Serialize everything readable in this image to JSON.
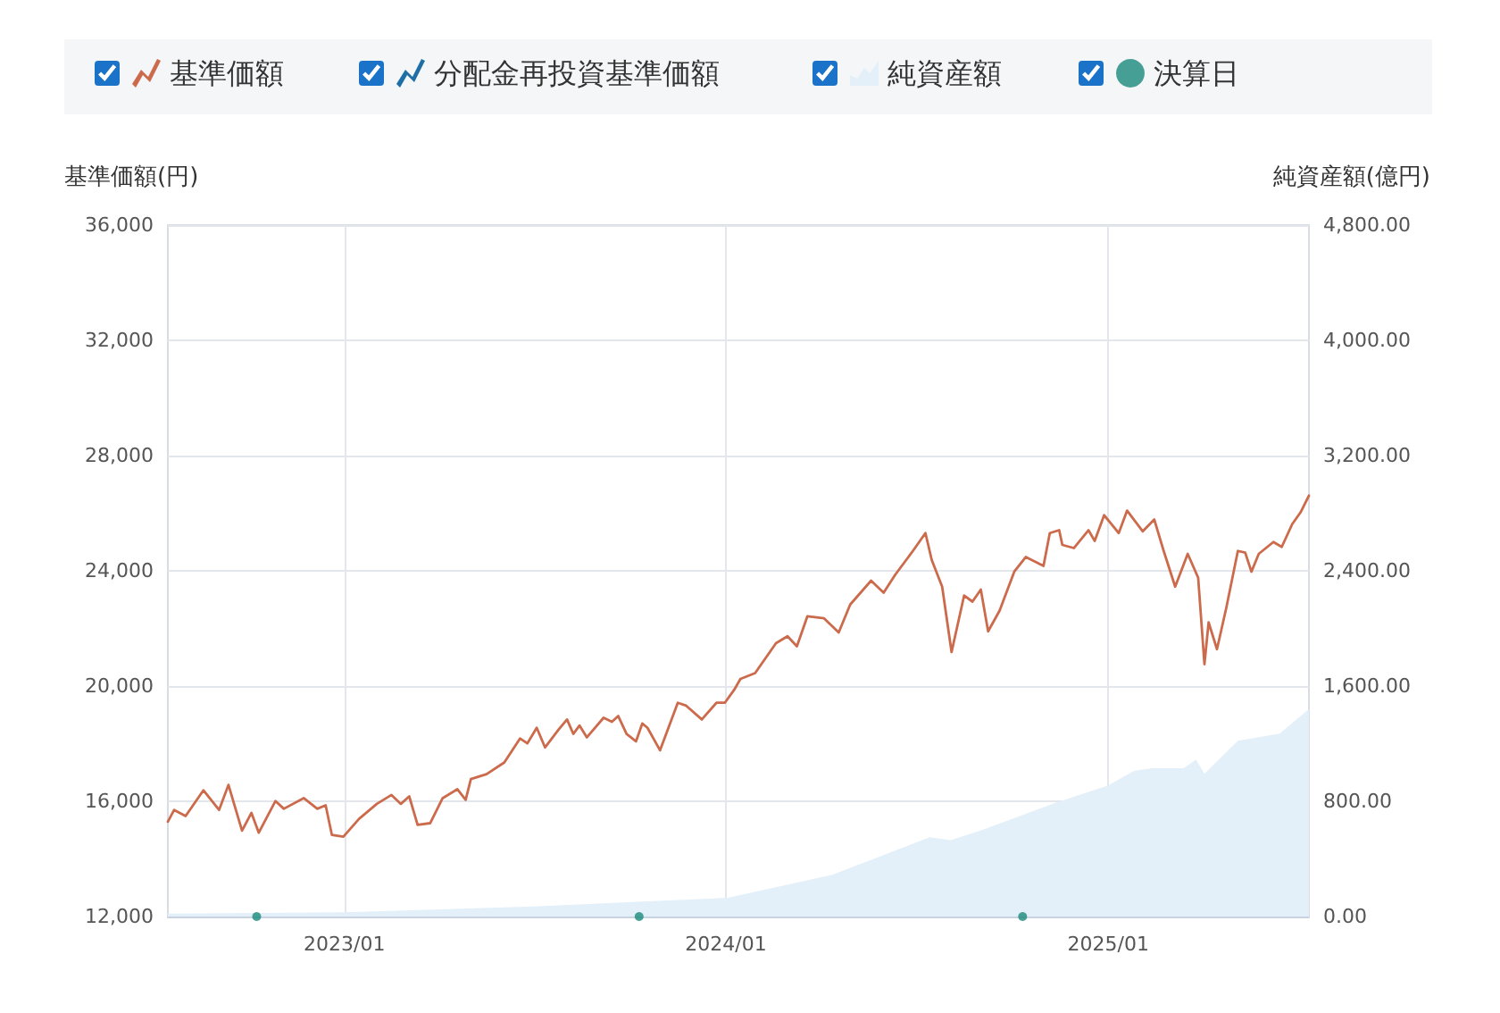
{
  "chart_data": {
    "type": "line",
    "ylabel": "基準価額(円)",
    "y2label": "純資産額(億円)",
    "x": [
      "2022-07-16",
      "2022-07-22",
      "2022-08-02",
      "2022-08-19",
      "2022-09-03",
      "2022-09-12",
      "2022-09-25",
      "2022-10-04",
      "2022-10-11",
      "2022-10-27",
      "2022-11-04",
      "2022-11-23",
      "2022-12-06",
      "2022-12-14",
      "2022-12-20",
      "2022-12-31",
      "2023-01-15",
      "2023-02-01",
      "2023-02-15",
      "2023-02-24",
      "2023-03-04",
      "2023-03-12",
      "2023-03-24",
      "2023-04-05",
      "2023-04-19",
      "2023-04-27",
      "2023-05-02",
      "2023-05-17",
      "2023-06-03",
      "2023-06-18",
      "2023-06-25",
      "2023-07-04",
      "2023-07-12",
      "2023-07-25",
      "2023-08-02",
      "2023-08-08",
      "2023-08-14",
      "2023-08-21",
      "2023-09-06",
      "2023-09-14",
      "2023-09-20",
      "2023-09-28",
      "2023-10-07",
      "2023-10-13",
      "2023-10-18",
      "2023-10-30",
      "2023-11-16",
      "2023-11-24",
      "2023-12-09",
      "2023-12-23",
      "2023-12-31",
      "2024-01-09",
      "2024-01-15",
      "2024-01-29",
      "2024-02-18",
      "2024-02-29",
      "2024-03-09",
      "2024-03-19",
      "2024-04-04",
      "2024-04-18",
      "2024-04-29",
      "2024-05-19",
      "2024-05-31",
      "2024-06-11",
      "2024-06-28",
      "2024-07-10",
      "2024-07-16",
      "2024-07-26",
      "2024-08-04",
      "2024-08-16",
      "2024-08-24",
      "2024-09-01",
      "2024-09-08",
      "2024-09-19",
      "2024-10-03",
      "2024-10-14",
      "2024-10-31",
      "2024-11-06",
      "2024-11-15",
      "2024-11-18",
      "2024-11-29",
      "2024-12-13",
      "2024-12-19",
      "2024-12-28",
      "2025-01-05",
      "2025-01-11",
      "2025-01-19",
      "2025-02-03",
      "2025-02-14",
      "2025-02-23",
      "2025-03-06",
      "2025-03-18",
      "2025-03-28",
      "2025-04-03",
      "2025-04-07",
      "2025-04-15",
      "2025-04-24",
      "2025-05-05",
      "2025-05-12",
      "2025-05-18",
      "2025-05-25",
      "2025-06-08",
      "2025-06-16",
      "2025-06-26",
      "2025-07-04",
      "2025-07-12"
    ],
    "series": [
      {
        "name": "基準価額",
        "color": "#cc6a4c",
        "values": [
          15290,
          15700,
          15490,
          16380,
          15700,
          16570,
          14980,
          15600,
          14910,
          16010,
          15740,
          16110,
          15740,
          15860,
          14830,
          14770,
          15390,
          15910,
          16220,
          15910,
          16170,
          15180,
          15240,
          16110,
          16420,
          16050,
          16770,
          16940,
          17350,
          18180,
          18010,
          18550,
          17870,
          18490,
          18840,
          18340,
          18630,
          18220,
          18900,
          18760,
          18960,
          18340,
          18080,
          18700,
          18550,
          17770,
          19420,
          19320,
          18840,
          19420,
          19420,
          19870,
          20250,
          20450,
          21490,
          21730,
          21380,
          22420,
          22350,
          21860,
          22830,
          23660,
          23240,
          23860,
          24690,
          25310,
          24380,
          23450,
          21180,
          23140,
          22930,
          23350,
          21900,
          22620,
          23970,
          24480,
          24170,
          25310,
          25410,
          24900,
          24790,
          25410,
          25040,
          25930,
          25580,
          25310,
          26090,
          25370,
          25780,
          24690,
          23450,
          24590,
          23760,
          20760,
          22210,
          21280,
          22730,
          24690,
          24630,
          23970,
          24590,
          25000,
          24830,
          25620,
          26030,
          26610
        ]
      },
      {
        "name": "分配金再投資基準価額",
        "color": "#1f6fa6",
        "values": [
          null,
          null,
          null,
          null,
          null,
          null,
          null,
          null,
          null,
          null,
          null,
          null,
          null,
          null,
          null,
          null,
          null,
          null,
          null,
          null,
          null,
          null,
          null,
          null,
          null,
          null,
          null,
          null,
          null,
          null,
          null,
          null,
          null,
          null,
          null,
          null,
          null,
          null,
          null,
          null,
          null,
          null,
          null,
          null,
          null,
          null,
          null,
          null,
          null,
          null,
          null,
          null,
          null,
          null,
          null,
          null,
          null,
          null,
          null,
          null,
          null,
          null,
          null,
          null,
          null,
          null,
          null,
          null,
          null,
          null,
          null,
          null,
          null,
          null,
          null,
          null,
          null,
          null,
          null,
          null,
          null,
          null,
          null,
          null,
          null,
          null,
          null,
          null,
          null,
          null,
          null,
          null,
          null,
          null,
          null,
          null,
          null,
          null,
          null,
          null,
          null,
          null,
          null,
          null,
          null,
          null
        ]
      },
      {
        "name": "純資産額",
        "type": "area",
        "axis": "y2",
        "color": "#e3f0f9",
        "x": [
          "2022-07-16",
          "2023-01-01",
          "2023-07-01",
          "2024-01-03",
          "2024-04-12",
          "2024-07-14",
          "2024-08-03",
          "2024-09-02",
          "2024-11-12",
          "2025-01-01",
          "2025-01-25",
          "2025-02-12",
          "2025-03-14",
          "2025-03-26",
          "2025-04-03",
          "2025-05-05",
          "2025-06-14",
          "2025-07-12"
        ],
        "values": [
          20,
          30,
          70,
          130,
          290,
          550,
          530,
          600,
          790,
          910,
          1010,
          1030,
          1030,
          1090,
          990,
          1220,
          1270,
          1440
        ]
      },
      {
        "name": "決算日",
        "type": "scatter",
        "color": "#1a8a7a",
        "x": [
          "2022-10-09",
          "2023-10-10",
          "2024-10-11"
        ],
        "values": [
          12000,
          12000,
          12000
        ]
      }
    ],
    "xlim": [
      "2022-07-16",
      "2025-07-12"
    ],
    "xticks": [
      {
        "value": "2023-01-01",
        "label": "2023/01"
      },
      {
        "value": "2024-01-01",
        "label": "2024/01"
      },
      {
        "value": "2025-01-01",
        "label": "2025/01"
      }
    ],
    "ylim": [
      12000,
      36000
    ],
    "yticks": [
      {
        "value": 12000,
        "label": "12,000"
      },
      {
        "value": 16000,
        "label": "16,000"
      },
      {
        "value": 20000,
        "label": "20,000"
      },
      {
        "value": 24000,
        "label": "24,000"
      },
      {
        "value": 28000,
        "label": "28,000"
      },
      {
        "value": 32000,
        "label": "32,000"
      },
      {
        "value": 36000,
        "label": "36,000"
      }
    ],
    "y2lim": [
      0,
      4800
    ],
    "y2ticks": [
      {
        "value": 0,
        "label": "0.00"
      },
      {
        "value": 800,
        "label": "800.00"
      },
      {
        "value": 1600,
        "label": "1,600.00"
      },
      {
        "value": 2400,
        "label": "2,400.00"
      },
      {
        "value": 3200,
        "label": "3,200.00"
      },
      {
        "value": 4000,
        "label": "4,000.00"
      },
      {
        "value": 4800,
        "label": "4,800.00"
      }
    ],
    "grid": true,
    "legend": "top"
  }
}
